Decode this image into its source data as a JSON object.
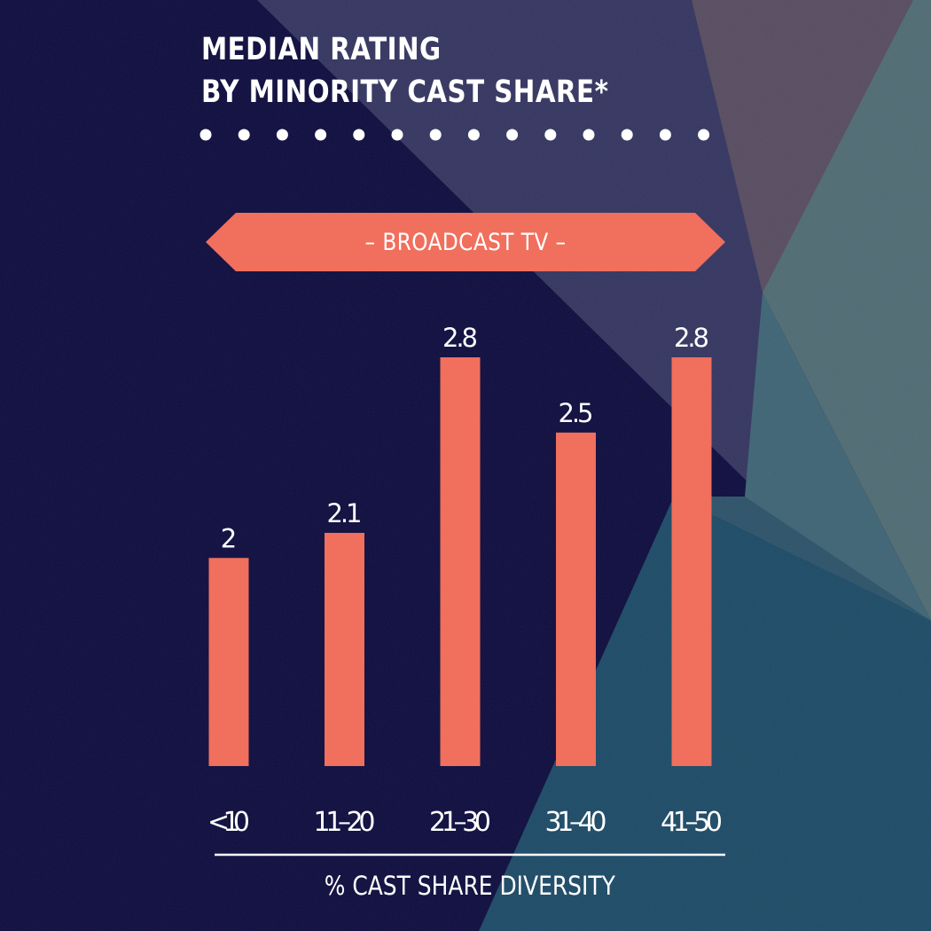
{
  "header": {
    "title_line1": "MEDIAN RATING",
    "title_line2": "BY MINORITY CAST SHARE*"
  },
  "banner": {
    "label": "–  BROADCAST TV  –"
  },
  "colors": {
    "bar": "#f06f5d",
    "banner": "#f06f5d",
    "text": "#ffffff",
    "background": "#0d0c3e"
  },
  "chart_data": {
    "type": "bar",
    "categories": [
      "<10",
      "11–20",
      "21–30",
      "31–40",
      "41–50"
    ],
    "values": [
      2,
      2.1,
      2.8,
      2.5,
      2.8
    ],
    "value_labels": [
      "2",
      "2.1",
      "2.8",
      "2.5",
      "2.8"
    ],
    "title": "MEDIAN RATING BY MINORITY CAST SHARE*",
    "subtitle": "BROADCAST TV",
    "xlabel": "% CAST SHARE DIVERSITY",
    "ylabel": "",
    "ylim": [
      0,
      2.8
    ],
    "grid": false,
    "legend": "none"
  }
}
